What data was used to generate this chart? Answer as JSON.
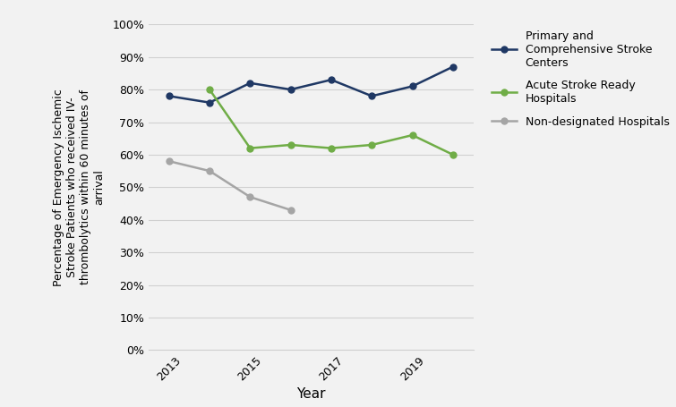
{
  "primary_years": [
    2013,
    2014,
    2015,
    2016,
    2017,
    2018,
    2019,
    2020
  ],
  "primary_values": [
    0.78,
    0.76,
    0.82,
    0.8,
    0.83,
    0.78,
    0.81,
    0.87
  ],
  "acute_years": [
    2014,
    2015,
    2016,
    2017,
    2018,
    2019,
    2020
  ],
  "acute_values": [
    0.8,
    0.62,
    0.63,
    0.62,
    0.63,
    0.66,
    0.6
  ],
  "nondesig_years": [
    2013,
    2014,
    2015,
    2016
  ],
  "nondesig_values": [
    0.58,
    0.55,
    0.47,
    0.43
  ],
  "primary_color": "#1f3864",
  "acute_color": "#70ad47",
  "nondesig_color": "#a5a5a5",
  "primary_label": "Primary and\nComprehensive Stroke\nCenters",
  "acute_label": "Acute Stroke Ready\nHospitals",
  "nondesig_label": "Non-designated Hospitals",
  "xlabel": "Year",
  "ylabel": "Percentage of Emergency Ischemic\nStroke Patients who received IV-\nthrombolytics within 60 minutes of\narrival",
  "ylim": [
    0.0,
    1.0
  ],
  "xlim": [
    2012.5,
    2020.5
  ],
  "xticks": [
    2013,
    2015,
    2017,
    2019
  ],
  "yticks": [
    0.0,
    0.1,
    0.2,
    0.3,
    0.4,
    0.5,
    0.6,
    0.7,
    0.8,
    0.9,
    1.0
  ],
  "marker": "o",
  "linewidth": 1.8,
  "markersize": 5,
  "background_color": "#f2f2f2",
  "grid_color": "#d0d0d0",
  "tick_fontsize": 9,
  "label_fontsize": 9,
  "xlabel_fontsize": 11,
  "legend_fontsize": 9
}
